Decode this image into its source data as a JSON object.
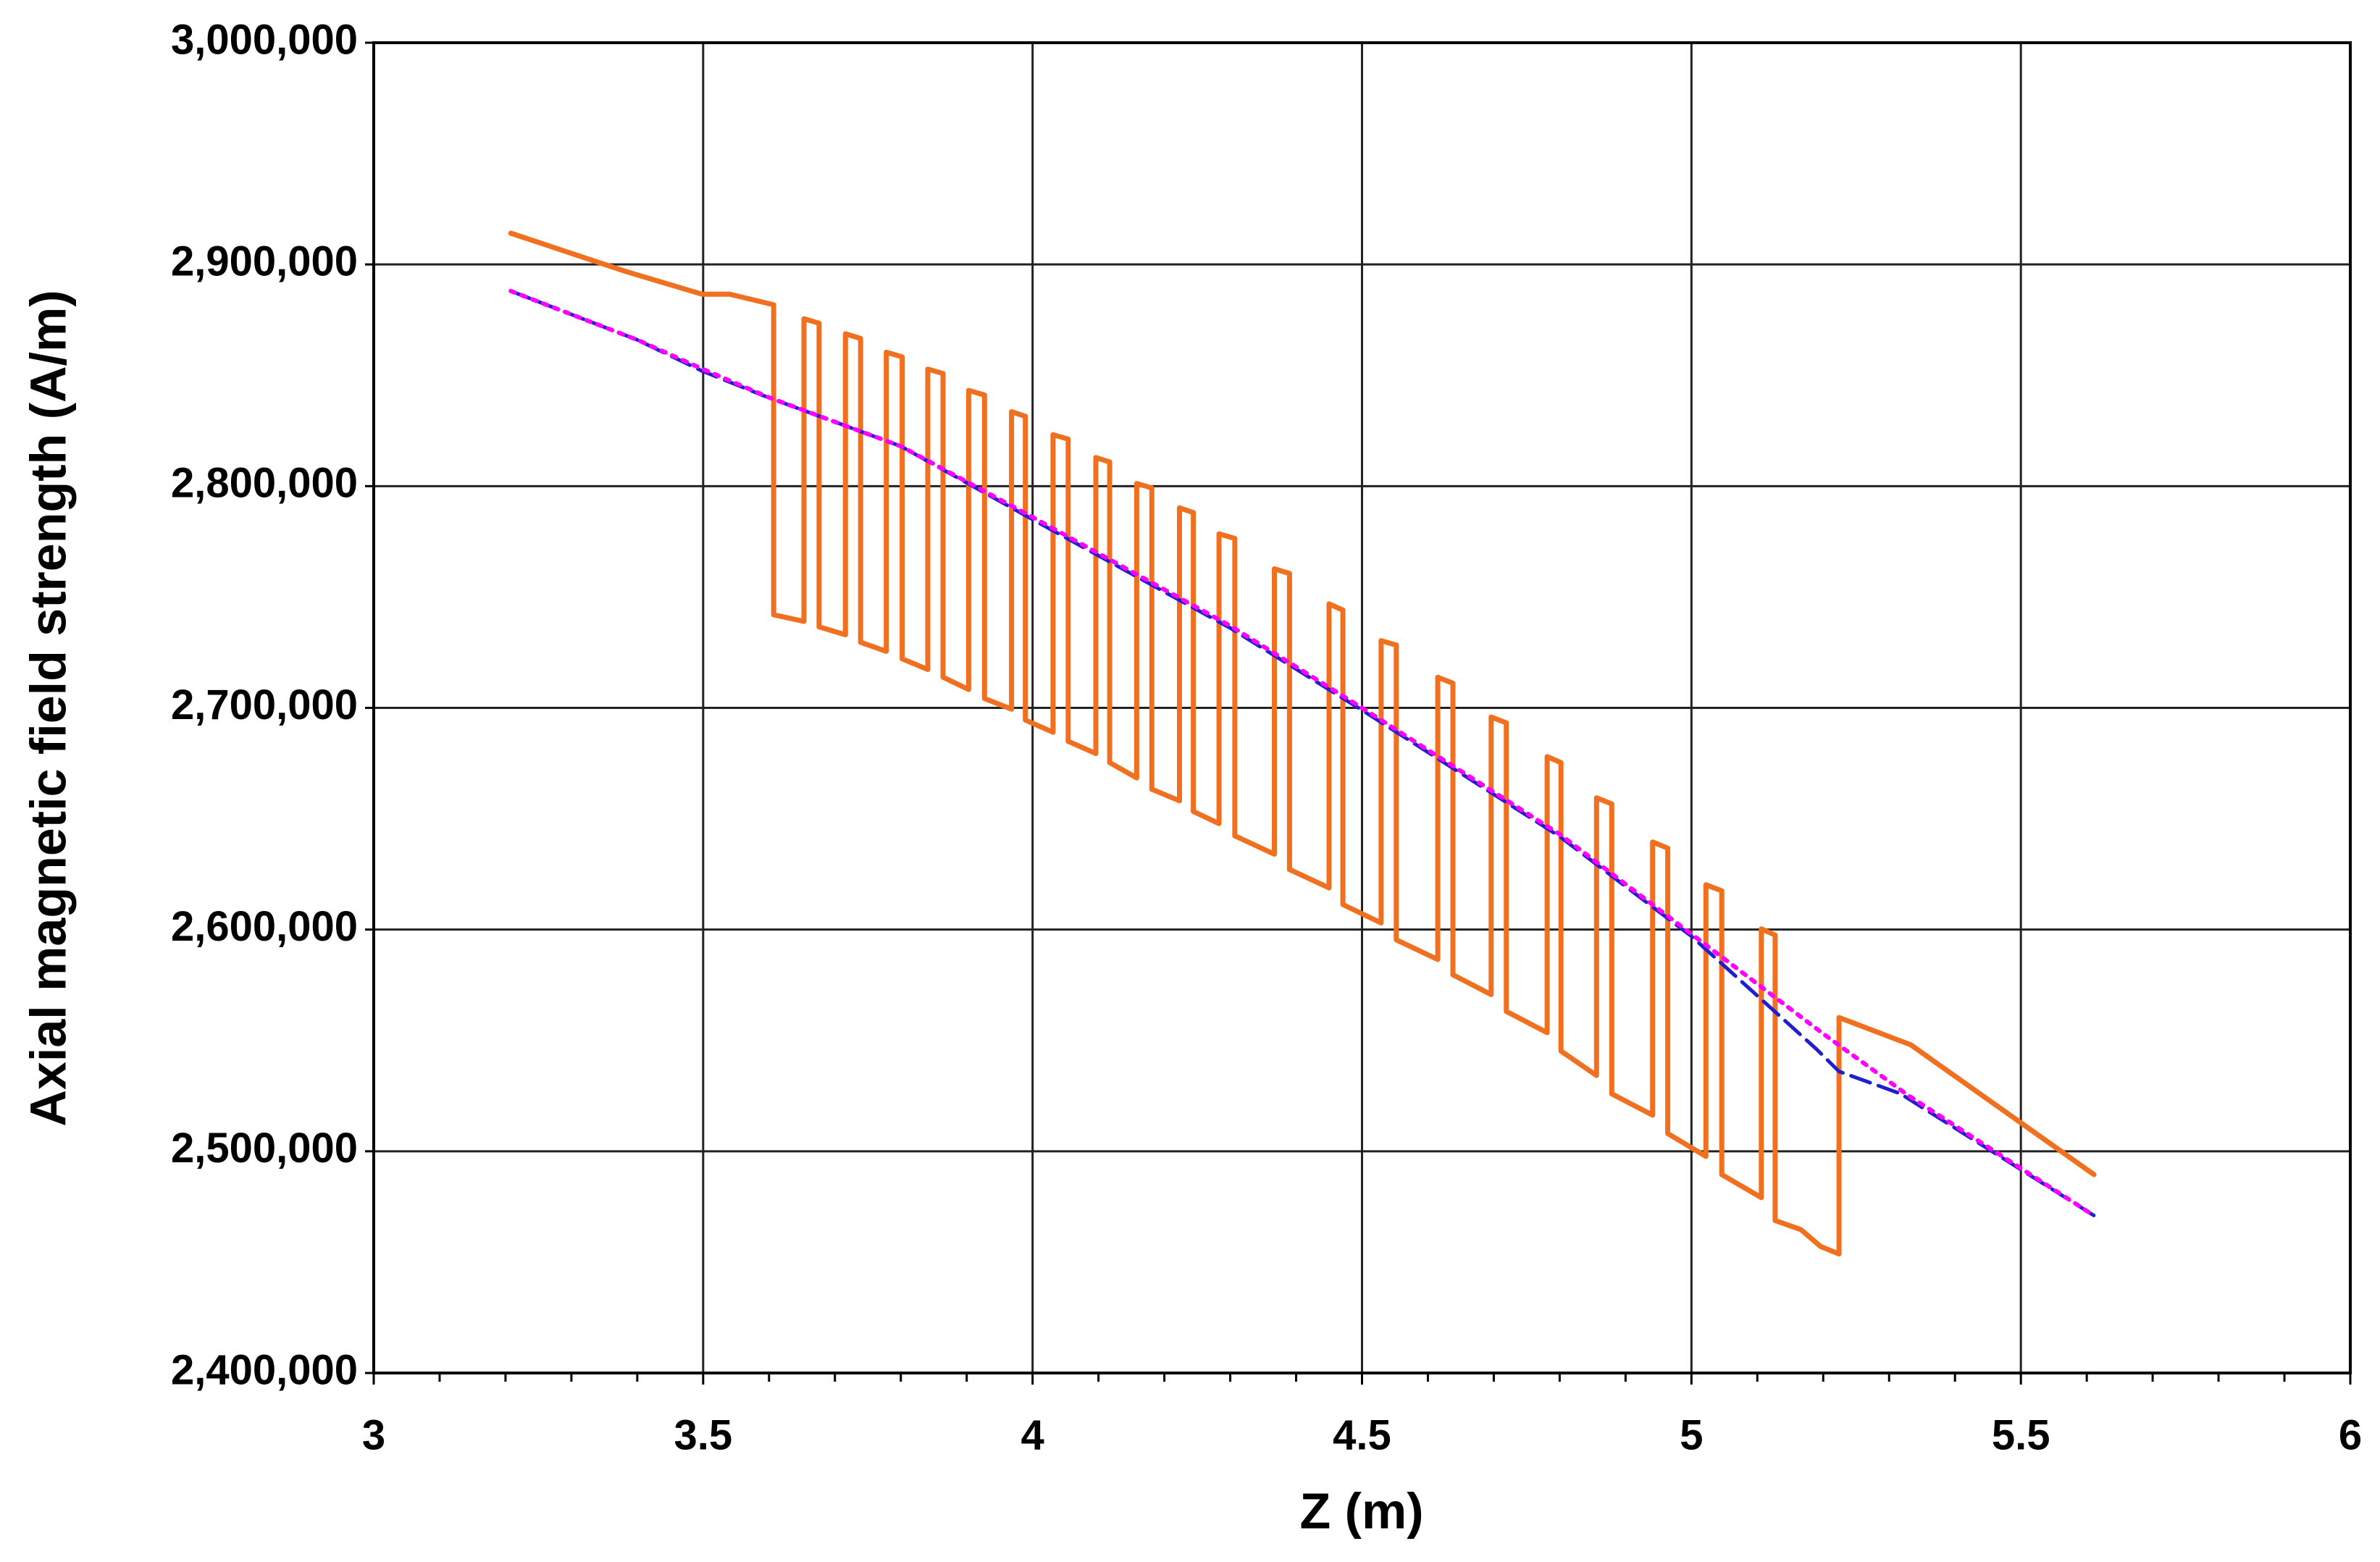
{
  "chart_data": {
    "type": "line",
    "x_label": "Z (m)",
    "y_label": "Axial magnetic field strength (A/m)",
    "xlim": [
      3,
      6
    ],
    "xticks": [
      3,
      3.5,
      4,
      4.5,
      5,
      5.5,
      6
    ],
    "xminorticks": [
      3.1,
      3.2,
      3.3,
      3.4,
      3.6,
      3.7,
      3.8,
      3.9,
      4.1,
      4.2,
      4.3,
      4.4,
      4.6,
      4.7,
      4.8,
      4.9,
      5.1,
      5.2,
      5.3,
      5.4,
      5.6,
      5.7,
      5.8,
      5.9
    ],
    "ylim": [
      2400000,
      3000000
    ],
    "yticks": [
      {
        "value": 2400000,
        "label": "2,400,000"
      },
      {
        "value": 2500000,
        "label": "2,500,000"
      },
      {
        "value": 2600000,
        "label": "2,600,000"
      },
      {
        "value": 2700000,
        "label": "2,700,000"
      },
      {
        "value": 2800000,
        "label": "2,800,000"
      },
      {
        "value": 2900000,
        "label": "2,900,000"
      },
      {
        "value": 3000000,
        "label": "3,000,000"
      }
    ],
    "grid": true,
    "series": [
      {
        "color": "#f07020",
        "style": "solid",
        "x": [
          3.208,
          3.382,
          3.498,
          3.54,
          3.607,
          3.607,
          3.653,
          3.653,
          3.676,
          3.676,
          3.716,
          3.716,
          3.739,
          3.739,
          3.778,
          3.778,
          3.802,
          3.802,
          3.841,
          3.841,
          3.864,
          3.864,
          3.903,
          3.903,
          3.927,
          3.927,
          3.968,
          3.968,
          3.989,
          3.989,
          4.031,
          4.031,
          4.054,
          4.054,
          4.096,
          4.096,
          4.117,
          4.117,
          4.158,
          4.158,
          4.181,
          4.181,
          4.223,
          4.223,
          4.244,
          4.244,
          4.283,
          4.283,
          4.307,
          4.307,
          4.367,
          4.367,
          4.39,
          4.39,
          4.45,
          4.45,
          4.471,
          4.471,
          4.529,
          4.529,
          4.552,
          4.552,
          4.615,
          4.615,
          4.638,
          4.638,
          4.696,
          4.696,
          4.719,
          4.719,
          4.781,
          4.781,
          4.802,
          4.802,
          4.856,
          4.856,
          4.879,
          4.879,
          4.941,
          4.941,
          4.964,
          4.964,
          5.022,
          5.022,
          5.046,
          5.046,
          5.106,
          5.106,
          5.127,
          5.127,
          5.166,
          5.196,
          5.224,
          5.224,
          5.333,
          5.611
        ],
        "values": [
          2914100,
          2896900,
          2886600,
          2886600,
          2881800,
          2742000,
          2739000,
          2875500,
          2873500,
          2736500,
          2733000,
          2868700,
          2866600,
          2729600,
          2725500,
          2860400,
          2858300,
          2722100,
          2717300,
          2852800,
          2850800,
          2713800,
          2708300,
          2843200,
          2841100,
          2704200,
          2699400,
          2833600,
          2831500,
          2694500,
          2689000,
          2823200,
          2821200,
          2684900,
          2679400,
          2812900,
          2810900,
          2675300,
          2668400,
          2801200,
          2799200,
          2663300,
          2658100,
          2790200,
          2788100,
          2653300,
          2647800,
          2778500,
          2776400,
          2642300,
          2634000,
          2762700,
          2760600,
          2627100,
          2618800,
          2746900,
          2744100,
          2611300,
          2603000,
          2730300,
          2728300,
          2595400,
          2586500,
          2713800,
          2711100,
          2579600,
          2570700,
          2695900,
          2693200,
          2563100,
          2553500,
          2678000,
          2675300,
          2545200,
          2534200,
          2659400,
          2656700,
          2525900,
          2516300,
          2639500,
          2636700,
          2508000,
          2497700,
          2620200,
          2617500,
          2489500,
          2479100,
          2600300,
          2597500,
          2468800,
          2464700,
          2457100,
          2453700,
          2560300,
          2548000,
          2489500
        ]
      },
      {
        "color": "#1f1fd0",
        "style": "dashed",
        "x": [
          3.208,
          3.4,
          3.498,
          3.59,
          3.8,
          4.0,
          4.3,
          4.5,
          4.8,
          5.0,
          5.19,
          5.224,
          5.317,
          5.611
        ],
        "values": [
          2888000,
          2866000,
          2852000,
          2841000,
          2818000,
          2785000,
          2736000,
          2699000,
          2642000,
          2597000,
          2546000,
          2536000,
          2526000,
          2471000
        ]
      },
      {
        "color": "#ff00ff",
        "style": "dotted",
        "x": [
          3.208,
          3.4,
          3.498,
          3.6,
          3.8,
          4.0,
          4.3,
          4.5,
          4.8,
          5.0,
          5.2,
          5.33,
          5.611
        ],
        "values": [
          2888000,
          2866000,
          2853000,
          2840000,
          2818000,
          2786000,
          2737000,
          2700000,
          2643000,
          2598000,
          2553000,
          2525000,
          2471000
        ]
      }
    ]
  }
}
